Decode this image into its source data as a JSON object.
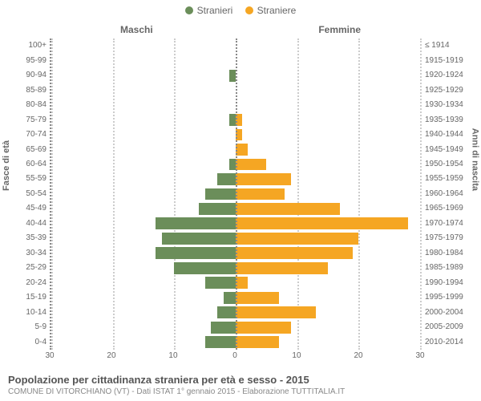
{
  "legend": {
    "male": {
      "label": "Stranieri",
      "color": "#6b8e5a"
    },
    "female": {
      "label": "Straniere",
      "color": "#f5a623"
    }
  },
  "headers": {
    "male": "Maschi",
    "female": "Femmine",
    "y_left": "Fasce di età",
    "y_right": "Anni di nascita"
  },
  "axis": {
    "max": 30,
    "ticks": [
      30,
      20,
      10,
      0,
      10,
      20,
      30
    ],
    "grid_at": [
      30,
      20,
      10,
      10,
      20,
      30
    ]
  },
  "style": {
    "bar_male": "#6b8e5a",
    "bar_female": "#f5a623",
    "grid_color": "#cccccc",
    "center_color": "#888888",
    "bg": "#ffffff",
    "title_fontsize": 13,
    "label_fontsize": 10
  },
  "rows": [
    {
      "age": "100+",
      "birth": "≤ 1914",
      "m": 0,
      "f": 0
    },
    {
      "age": "95-99",
      "birth": "1915-1919",
      "m": 0,
      "f": 0
    },
    {
      "age": "90-94",
      "birth": "1920-1924",
      "m": 1,
      "f": 0
    },
    {
      "age": "85-89",
      "birth": "1925-1929",
      "m": 0,
      "f": 0
    },
    {
      "age": "80-84",
      "birth": "1930-1934",
      "m": 0,
      "f": 0
    },
    {
      "age": "75-79",
      "birth": "1935-1939",
      "m": 1,
      "f": 1
    },
    {
      "age": "70-74",
      "birth": "1940-1944",
      "m": 0,
      "f": 1
    },
    {
      "age": "65-69",
      "birth": "1945-1949",
      "m": 0,
      "f": 2
    },
    {
      "age": "60-64",
      "birth": "1950-1954",
      "m": 1,
      "f": 5
    },
    {
      "age": "55-59",
      "birth": "1955-1959",
      "m": 3,
      "f": 9
    },
    {
      "age": "50-54",
      "birth": "1960-1964",
      "m": 5,
      "f": 8
    },
    {
      "age": "45-49",
      "birth": "1965-1969",
      "m": 6,
      "f": 17
    },
    {
      "age": "40-44",
      "birth": "1970-1974",
      "m": 13,
      "f": 28
    },
    {
      "age": "35-39",
      "birth": "1975-1979",
      "m": 12,
      "f": 20
    },
    {
      "age": "30-34",
      "birth": "1980-1984",
      "m": 13,
      "f": 19
    },
    {
      "age": "25-29",
      "birth": "1985-1989",
      "m": 10,
      "f": 15
    },
    {
      "age": "20-24",
      "birth": "1990-1994",
      "m": 5,
      "f": 2
    },
    {
      "age": "15-19",
      "birth": "1995-1999",
      "m": 2,
      "f": 7
    },
    {
      "age": "10-14",
      "birth": "2000-2004",
      "m": 3,
      "f": 13
    },
    {
      "age": "5-9",
      "birth": "2005-2009",
      "m": 4,
      "f": 9
    },
    {
      "age": "0-4",
      "birth": "2010-2014",
      "m": 5,
      "f": 7
    }
  ],
  "footer": {
    "title": "Popolazione per cittadinanza straniera per età e sesso - 2015",
    "subtitle": "COMUNE DI VITORCHIANO (VT) - Dati ISTAT 1° gennaio 2015 - Elaborazione TUTTITALIA.IT"
  }
}
